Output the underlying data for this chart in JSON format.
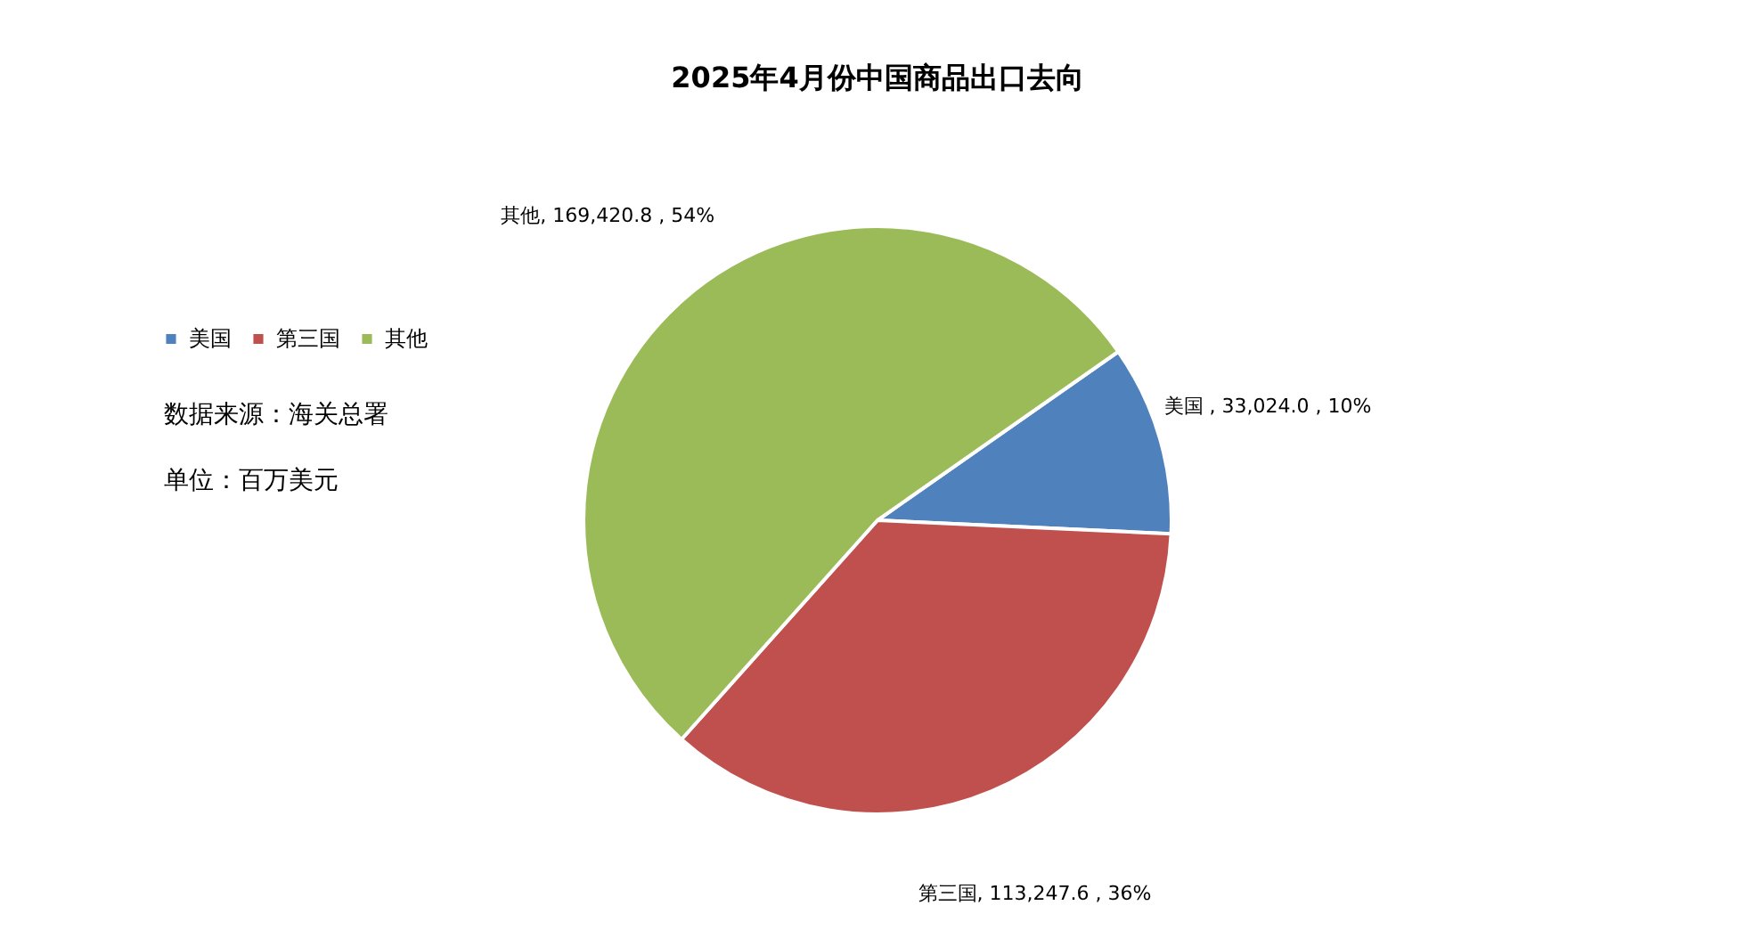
{
  "chart_data": {
    "type": "pie",
    "title": "2025年4月份中国商品出口去向",
    "categories": [
      "美国",
      "第三国",
      "其他"
    ],
    "values": [
      33024.0,
      113247.6,
      169420.8
    ],
    "colors": [
      "#4f81bd",
      "#c0504d",
      "#9bbb59"
    ],
    "value_labels": [
      "美国 , 33,024.0 , 10%",
      "第三国, 113,247.6 , 36%",
      "其他, 169,420.8 , 54%"
    ],
    "legend": "left",
    "annotations": [
      "数据来源：海关总署",
      "单位：百万美元"
    ]
  }
}
